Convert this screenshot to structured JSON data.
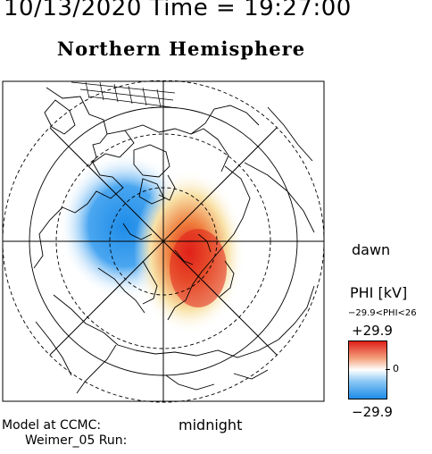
{
  "header": {
    "timestamp": "10/13/2020 Time = 19:27:00",
    "title": "Northern Hemisphere"
  },
  "map": {
    "orientation_labels": {
      "dawn": "dawn",
      "midnight": "midnight"
    },
    "potential_pattern": {
      "negative_cell": "dusk / pre-midnight sector, blue",
      "positive_cell": "dawn / post-midnight sector, red"
    }
  },
  "colorbar": {
    "title": "PHI [kV]",
    "range_text": "−29.9<PHI<26",
    "max_label": "+29.9",
    "mid_label": "0",
    "min_label": "−29.9",
    "colors": {
      "positive": "#e0201a",
      "neutral": "#ffffff",
      "negative": "#1e8ce8"
    }
  },
  "footer": {
    "model_line": "Model at CCMC:",
    "run_line": "Weimer_05 Run:"
  }
}
